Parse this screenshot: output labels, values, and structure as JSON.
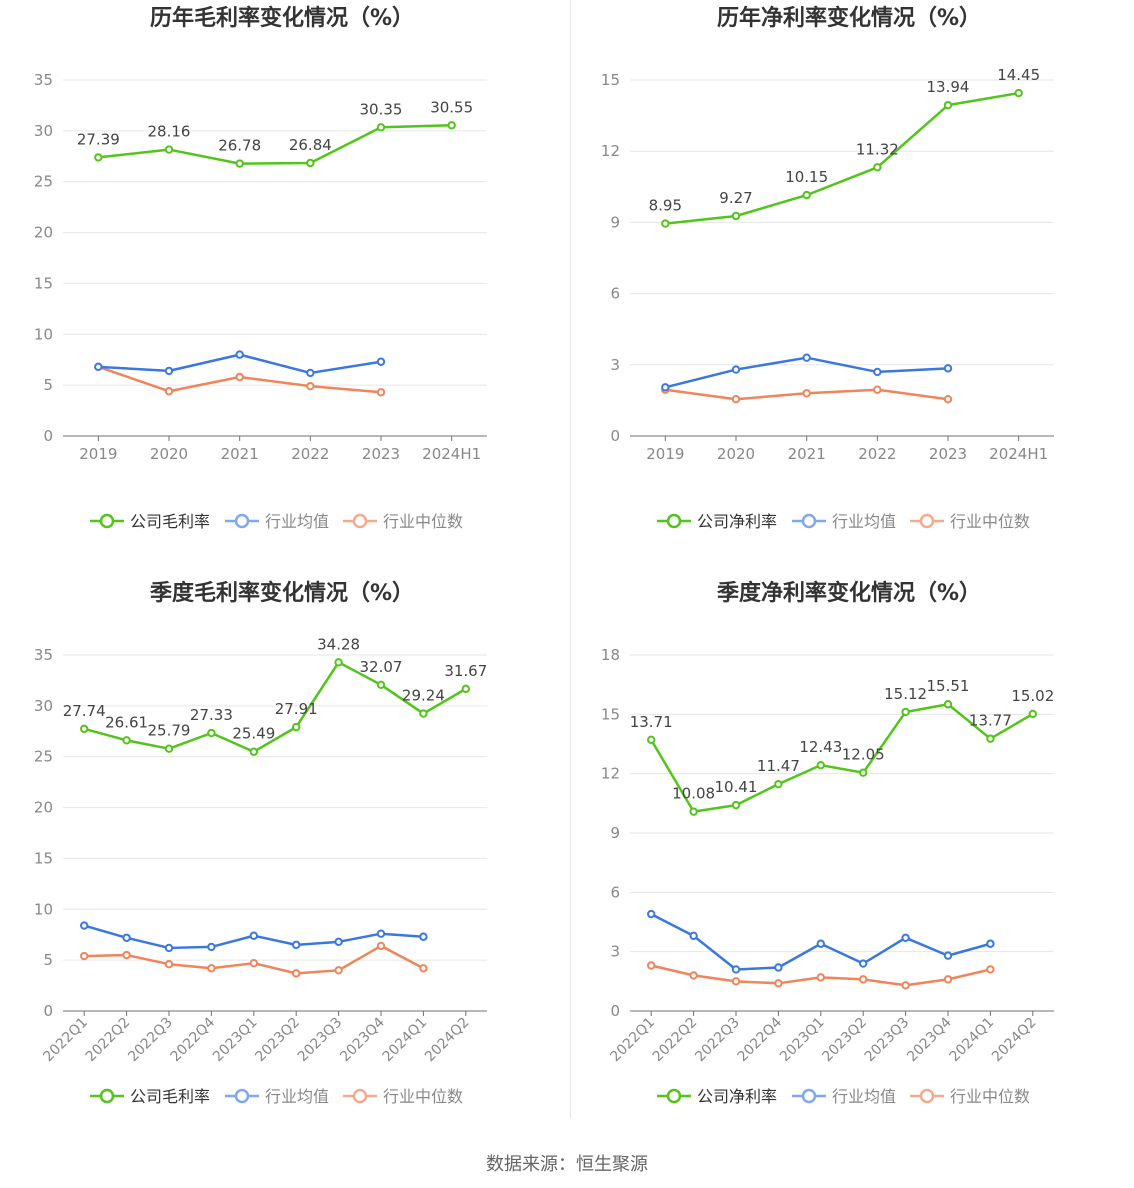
{
  "source": "数据来源：恒生聚源",
  "colors": {
    "company": "#52c41a",
    "avg": "#3a78e0",
    "median": "#f0845a",
    "avg_legend": "#7fa8f0",
    "median_legend": "#f5aa8c"
  },
  "chart_data": [
    {
      "type": "line",
      "title": "历年毛利率变化情况（%）",
      "categories": [
        "2019",
        "2020",
        "2021",
        "2022",
        "2023",
        "2024H1"
      ],
      "ylim": [
        0,
        35
      ],
      "yticks": [
        0,
        5,
        10,
        15,
        20,
        25,
        30,
        35
      ],
      "rotate_labels": false,
      "series": [
        {
          "name": "公司毛利率",
          "role": "company",
          "labels": true,
          "values": [
            27.39,
            28.16,
            26.78,
            26.84,
            30.35,
            30.55
          ]
        },
        {
          "name": "行业均值",
          "role": "avg",
          "labels": false,
          "values": [
            6.8,
            6.4,
            8.0,
            6.2,
            7.3,
            null
          ]
        },
        {
          "name": "行业中位数",
          "role": "median",
          "labels": false,
          "values": [
            6.8,
            4.4,
            5.8,
            4.9,
            4.3,
            null
          ]
        }
      ]
    },
    {
      "type": "line",
      "title": "历年净利率变化情况（%）",
      "categories": [
        "2019",
        "2020",
        "2021",
        "2022",
        "2023",
        "2024H1"
      ],
      "ylim": [
        0,
        15
      ],
      "yticks": [
        0,
        3,
        6,
        9,
        12,
        15
      ],
      "rotate_labels": false,
      "series": [
        {
          "name": "公司净利率",
          "role": "company",
          "labels": true,
          "values": [
            8.95,
            9.27,
            10.15,
            11.32,
            13.94,
            14.45
          ]
        },
        {
          "name": "行业均值",
          "role": "avg",
          "labels": false,
          "values": [
            2.05,
            2.8,
            3.3,
            2.7,
            2.85,
            null
          ]
        },
        {
          "name": "行业中位数",
          "role": "median",
          "labels": false,
          "values": [
            1.95,
            1.55,
            1.8,
            1.95,
            1.55,
            null
          ]
        }
      ]
    },
    {
      "type": "line",
      "title": "季度毛利率变化情况（%）",
      "categories": [
        "2022Q1",
        "2022Q2",
        "2022Q3",
        "2022Q4",
        "2023Q1",
        "2023Q2",
        "2023Q3",
        "2023Q4",
        "2024Q1",
        "2024Q2"
      ],
      "ylim": [
        0,
        35
      ],
      "yticks": [
        0,
        5,
        10,
        15,
        20,
        25,
        30,
        35
      ],
      "rotate_labels": true,
      "series": [
        {
          "name": "公司毛利率",
          "role": "company",
          "labels": true,
          "values": [
            27.74,
            26.61,
            25.79,
            27.33,
            25.49,
            27.91,
            34.28,
            32.07,
            29.24,
            31.67
          ]
        },
        {
          "name": "行业均值",
          "role": "avg",
          "labels": false,
          "values": [
            8.4,
            7.2,
            6.2,
            6.3,
            7.4,
            6.5,
            6.8,
            7.6,
            7.3,
            null
          ]
        },
        {
          "name": "行业中位数",
          "role": "median",
          "labels": false,
          "values": [
            5.4,
            5.5,
            4.6,
            4.2,
            4.7,
            3.7,
            4.0,
            6.4,
            4.2,
            null
          ]
        }
      ]
    },
    {
      "type": "line",
      "title": "季度净利率变化情况（%）",
      "categories": [
        "2022Q1",
        "2022Q2",
        "2022Q3",
        "2022Q4",
        "2023Q1",
        "2023Q2",
        "2023Q3",
        "2023Q4",
        "2024Q1",
        "2024Q2"
      ],
      "ylim": [
        0,
        18
      ],
      "yticks": [
        0,
        3,
        6,
        9,
        12,
        15,
        18
      ],
      "rotate_labels": true,
      "series": [
        {
          "name": "公司净利率",
          "role": "company",
          "labels": true,
          "values": [
            13.71,
            10.08,
            10.41,
            11.47,
            12.43,
            12.05,
            15.12,
            15.51,
            13.77,
            15.02
          ]
        },
        {
          "name": "行业均值",
          "role": "avg",
          "labels": false,
          "values": [
            4.9,
            3.8,
            2.1,
            2.2,
            3.4,
            2.4,
            3.7,
            2.8,
            3.4,
            null
          ]
        },
        {
          "name": "行业中位数",
          "role": "median",
          "labels": false,
          "values": [
            2.3,
            1.8,
            1.5,
            1.4,
            1.7,
            1.6,
            1.3,
            1.6,
            2.1,
            null
          ]
        }
      ]
    }
  ]
}
